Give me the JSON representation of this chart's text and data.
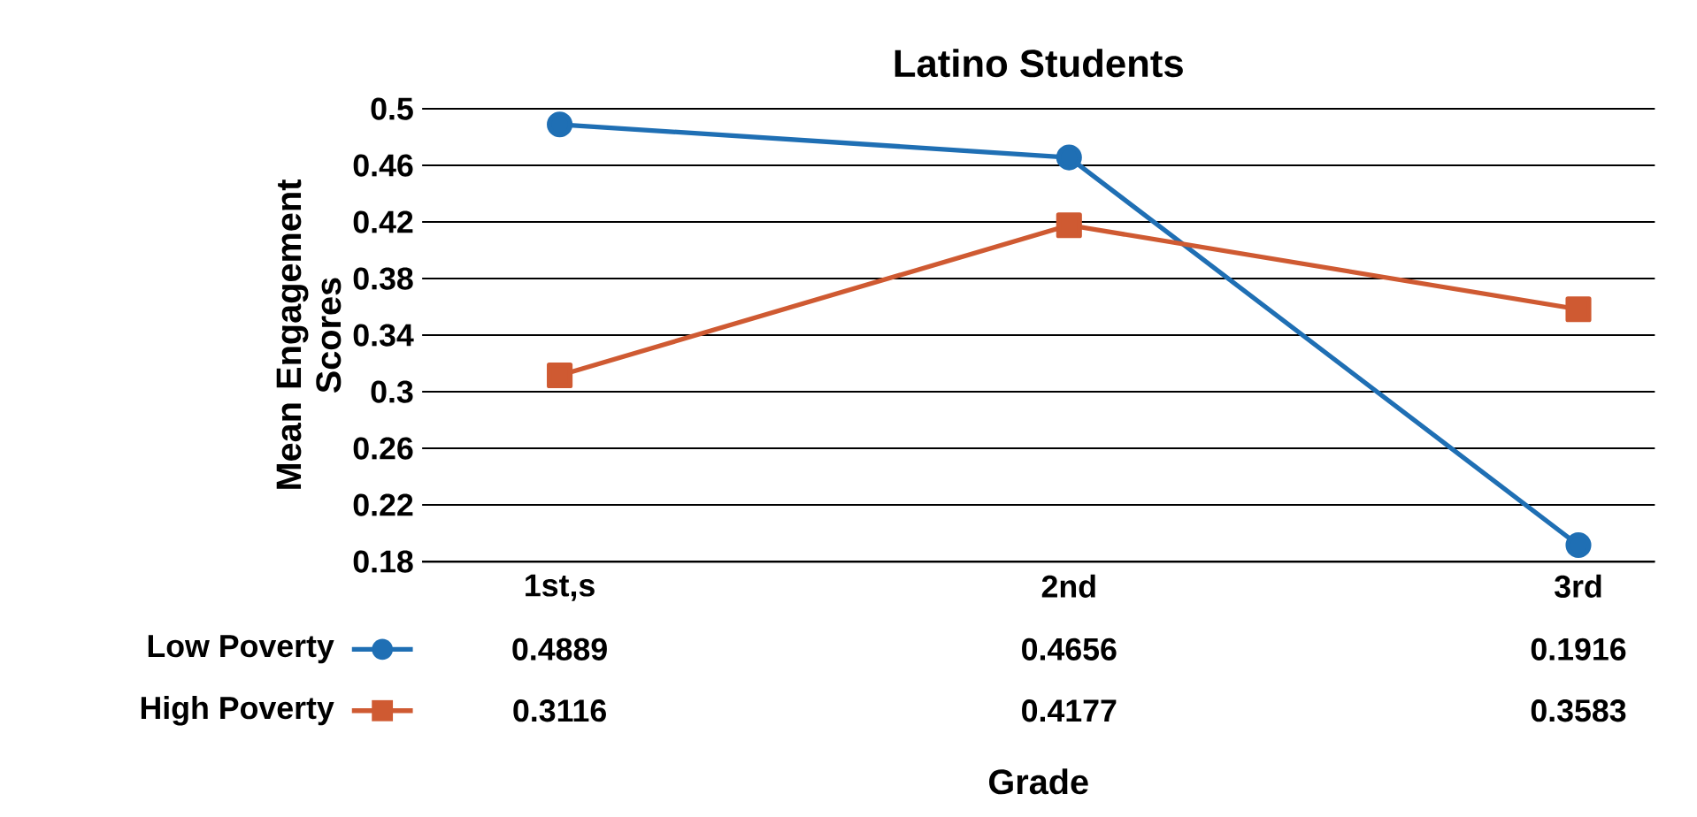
{
  "chart_data": {
    "type": "line",
    "title": "Latino Students",
    "xlabel": "Grade",
    "ylabel": "Mean Engagement Scores",
    "categories": [
      "1st,s",
      "2nd",
      "3rd"
    ],
    "series": [
      {
        "name": "Low Poverty",
        "color": "#1f6fb4",
        "marker": "circle",
        "values": [
          0.4889,
          0.4656,
          0.1916
        ]
      },
      {
        "name": "High Poverty",
        "color": "#cf5a32",
        "marker": "square",
        "values": [
          0.3116,
          0.4177,
          0.3583
        ]
      }
    ],
    "ylim": [
      0.18,
      0.5
    ],
    "yticks": [
      0.18,
      0.22,
      0.26,
      0.3,
      0.34,
      0.38,
      0.42,
      0.46,
      0.5
    ],
    "grid": "y",
    "legend": "bottom left",
    "data_labels": true,
    "line_style": "solid"
  }
}
